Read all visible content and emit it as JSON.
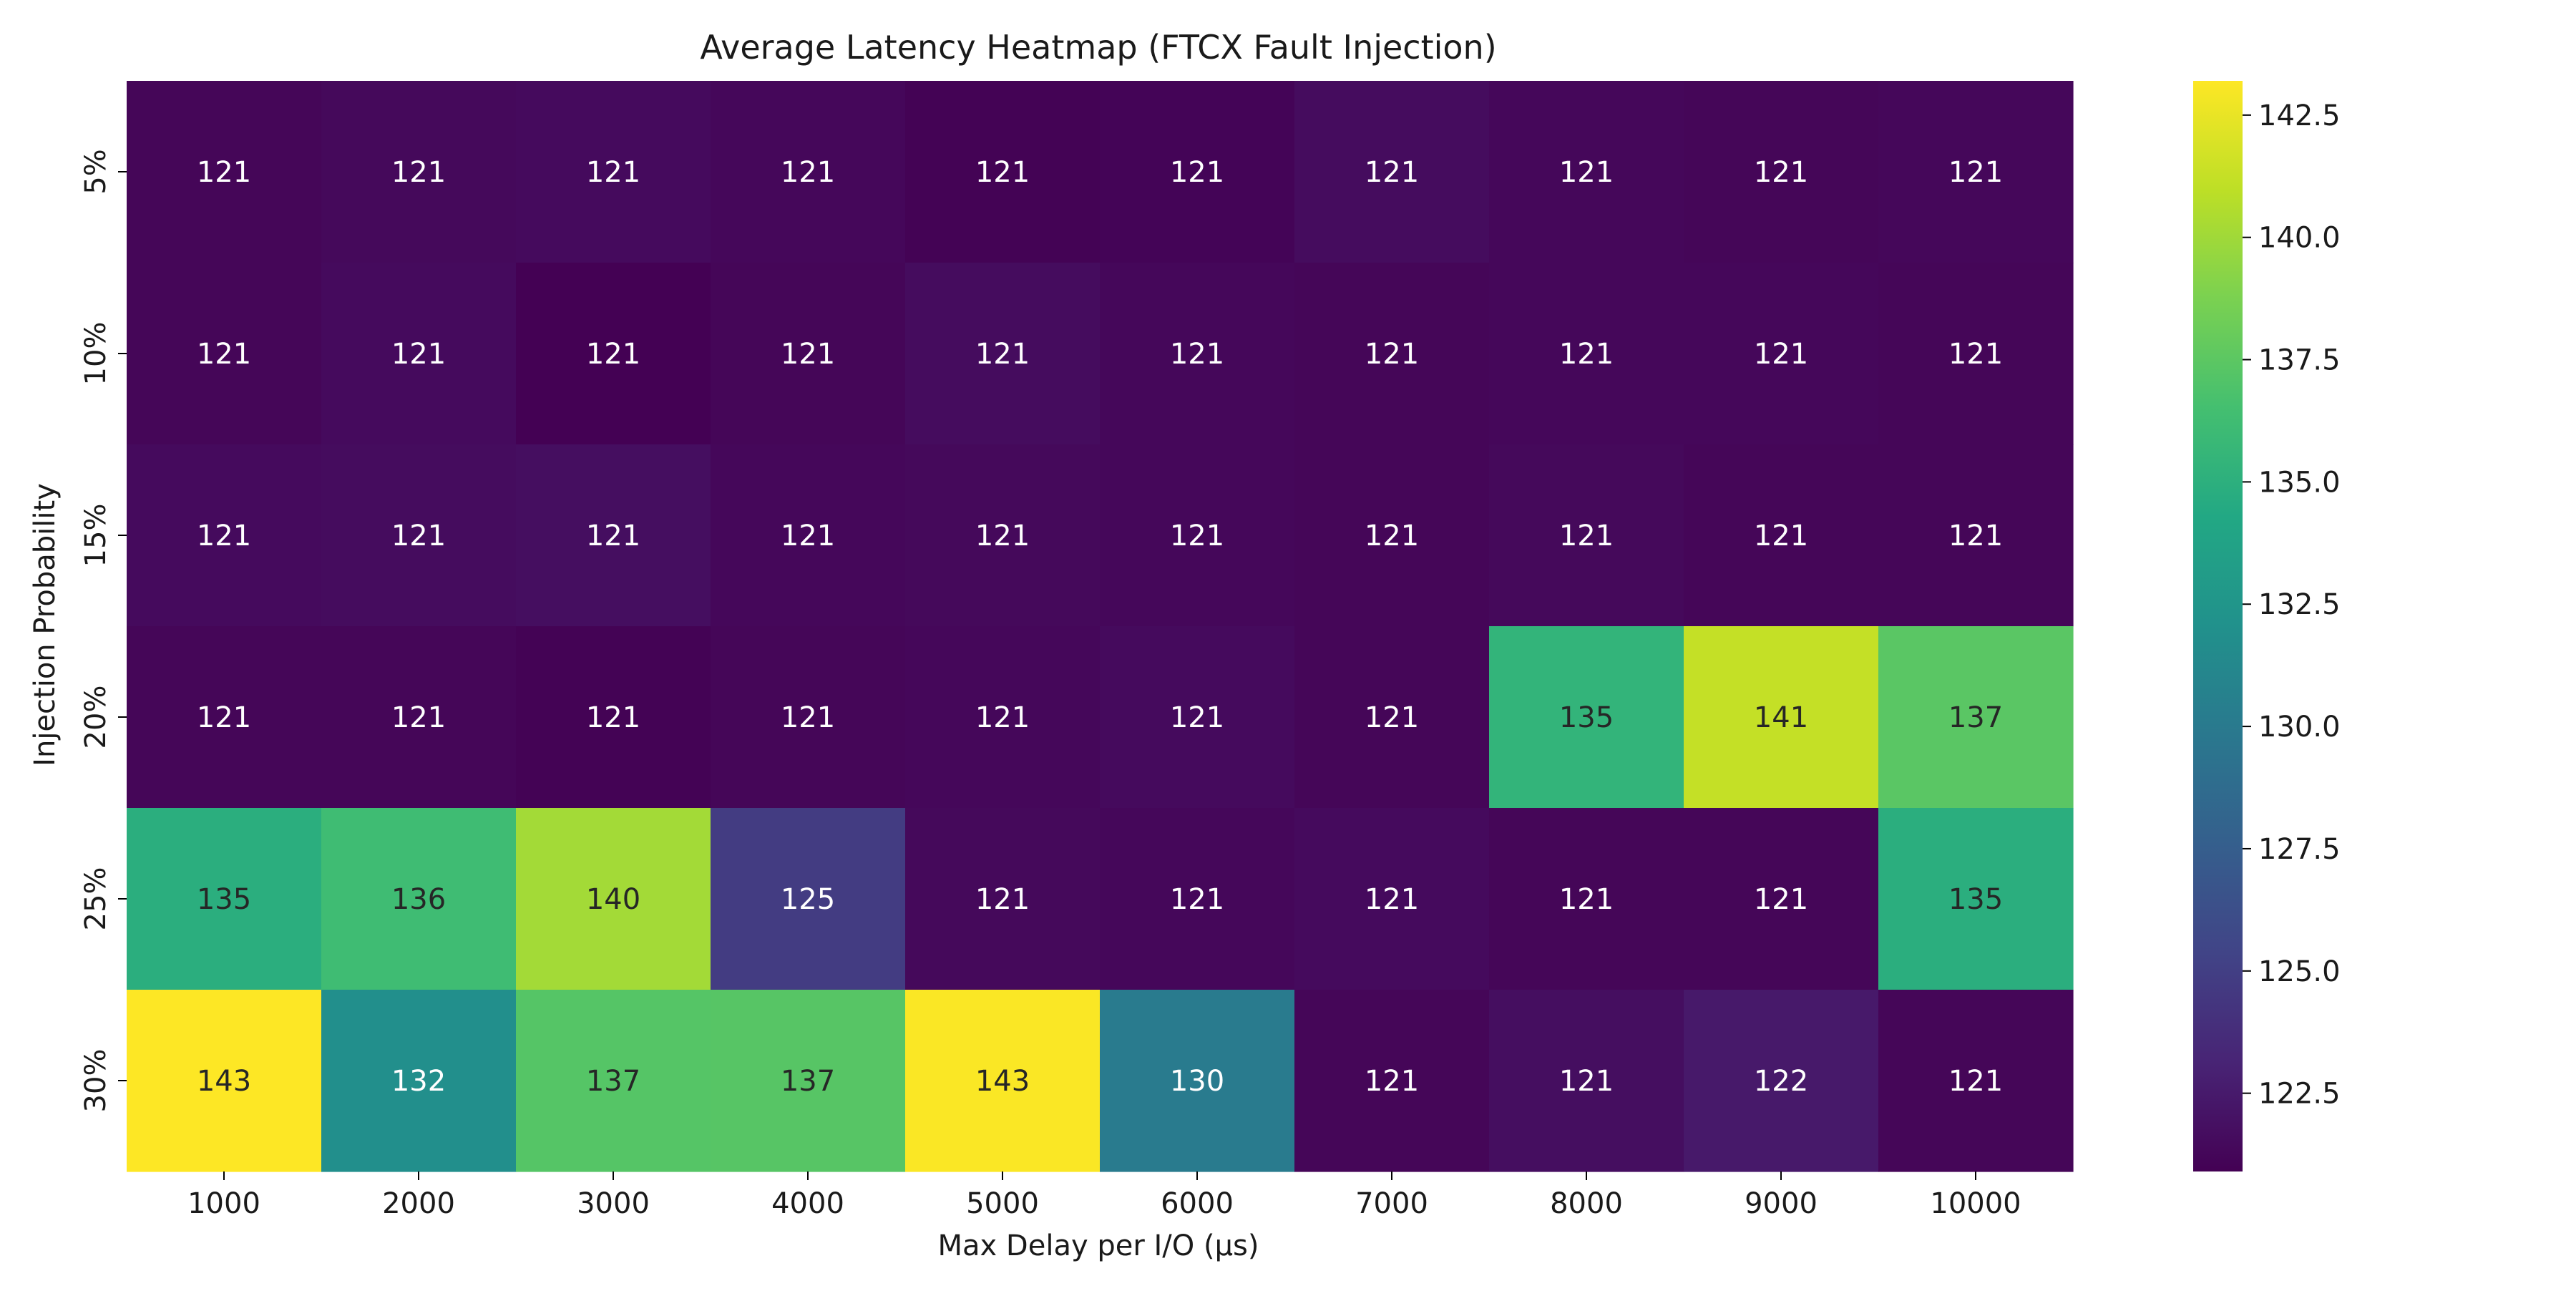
{
  "chart_data": {
    "type": "heatmap",
    "title": "Average Latency Heatmap (FTCX Fault Injection)",
    "xlabel": "Max Delay per I/O (µs)",
    "ylabel": "Injection Probability",
    "x_categories": [
      "1000",
      "2000",
      "3000",
      "4000",
      "5000",
      "6000",
      "7000",
      "8000",
      "9000",
      "10000"
    ],
    "y_categories": [
      "5%",
      "10%",
      "15%",
      "20%",
      "25%",
      "30%"
    ],
    "values": [
      [
        121.2,
        121.4,
        121.5,
        121.3,
        121.0,
        121.1,
        121.6,
        121.3,
        121.2,
        121.3
      ],
      [
        121.2,
        121.5,
        120.9,
        121.2,
        121.6,
        121.3,
        121.2,
        121.3,
        121.3,
        121.2
      ],
      [
        121.5,
        121.6,
        121.7,
        121.3,
        121.4,
        121.3,
        121.2,
        121.4,
        121.2,
        121.2
      ],
      [
        121.2,
        121.2,
        121.0,
        121.2,
        121.3,
        121.5,
        121.2,
        135.4,
        141.2,
        137.4
      ],
      [
        134.9,
        136.2,
        140.1,
        124.8,
        121.4,
        121.3,
        121.5,
        121.2,
        121.2,
        134.9
      ],
      [
        143.2,
        131.9,
        137.2,
        137.3,
        143.1,
        130.1,
        121.2,
        121.7,
        122.4,
        121.2
      ]
    ],
    "annotations": [
      [
        "121",
        "121",
        "121",
        "121",
        "121",
        "121",
        "121",
        "121",
        "121",
        "121"
      ],
      [
        "121",
        "121",
        "121",
        "121",
        "121",
        "121",
        "121",
        "121",
        "121",
        "121"
      ],
      [
        "121",
        "121",
        "121",
        "121",
        "121",
        "121",
        "121",
        "121",
        "121",
        "121"
      ],
      [
        "121",
        "121",
        "121",
        "121",
        "121",
        "121",
        "121",
        "135",
        "141",
        "137"
      ],
      [
        "135",
        "136",
        "140",
        "125",
        "121",
        "121",
        "121",
        "121",
        "121",
        "135"
      ],
      [
        "143",
        "132",
        "137",
        "137",
        "143",
        "130",
        "121",
        "121",
        "122",
        "121"
      ]
    ],
    "colormap": "viridis",
    "colorbar": {
      "vmin": 120.9,
      "vmax": 143.2,
      "ticks": [
        122.5,
        125.0,
        127.5,
        130.0,
        132.5,
        135.0,
        137.5,
        140.0,
        142.5
      ],
      "tick_labels": [
        "122.5",
        "125.0",
        "127.5",
        "130.0",
        "132.5",
        "135.0",
        "137.5",
        "140.0",
        "142.5"
      ]
    }
  }
}
